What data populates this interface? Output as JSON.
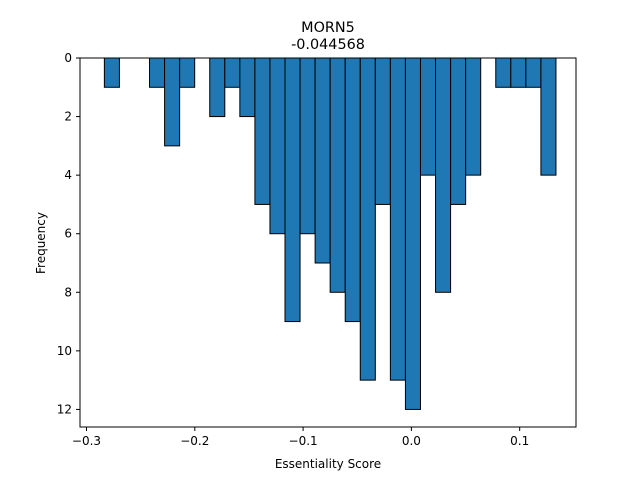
{
  "chart_data": {
    "type": "bar",
    "title": "MORN5",
    "subtitle": "-0.044568",
    "xlabel": "Essentiality Score",
    "ylabel": "Frequency",
    "xlim": [
      -0.306,
      0.152
    ],
    "ylim": [
      12.6,
      0
    ],
    "y_inverted": true,
    "grid": false,
    "bar_color": "#1f77b4",
    "edge_color": "#000000",
    "xticks": [
      {
        "value": -0.3,
        "label": "−0.3"
      },
      {
        "value": -0.2,
        "label": "−0.2"
      },
      {
        "value": -0.1,
        "label": "−0.1"
      },
      {
        "value": 0.0,
        "label": "0.0"
      },
      {
        "value": 0.1,
        "label": "0.1"
      }
    ],
    "yticks": [
      {
        "value": 0,
        "label": "0"
      },
      {
        "value": 2,
        "label": "2"
      },
      {
        "value": 4,
        "label": "4"
      },
      {
        "value": 6,
        "label": "6"
      },
      {
        "value": 8,
        "label": "8"
      },
      {
        "value": 10,
        "label": "10"
      },
      {
        "value": 12,
        "label": "12"
      }
    ],
    "bin_width": 0.0139,
    "bins": [
      {
        "start": -0.2835,
        "count": 1
      },
      {
        "start": -0.2418,
        "count": 1
      },
      {
        "start": -0.2279,
        "count": 3
      },
      {
        "start": -0.214,
        "count": 1
      },
      {
        "start": -0.1862,
        "count": 2
      },
      {
        "start": -0.1723,
        "count": 1
      },
      {
        "start": -0.1584,
        "count": 2
      },
      {
        "start": -0.1445,
        "count": 5
      },
      {
        "start": -0.1306,
        "count": 6
      },
      {
        "start": -0.1167,
        "count": 9
      },
      {
        "start": -0.1028,
        "count": 6
      },
      {
        "start": -0.0889,
        "count": 7
      },
      {
        "start": -0.075,
        "count": 8
      },
      {
        "start": -0.0611,
        "count": 9
      },
      {
        "start": -0.0472,
        "count": 11
      },
      {
        "start": -0.0333,
        "count": 5
      },
      {
        "start": -0.0194,
        "count": 11
      },
      {
        "start": -0.0055,
        "count": 12
      },
      {
        "start": 0.0084,
        "count": 4
      },
      {
        "start": 0.0223,
        "count": 8
      },
      {
        "start": 0.0362,
        "count": 5
      },
      {
        "start": 0.0501,
        "count": 4
      },
      {
        "start": 0.0779,
        "count": 1
      },
      {
        "start": 0.0918,
        "count": 1
      },
      {
        "start": 0.1057,
        "count": 1
      },
      {
        "start": 0.1196,
        "count": 4
      }
    ]
  }
}
